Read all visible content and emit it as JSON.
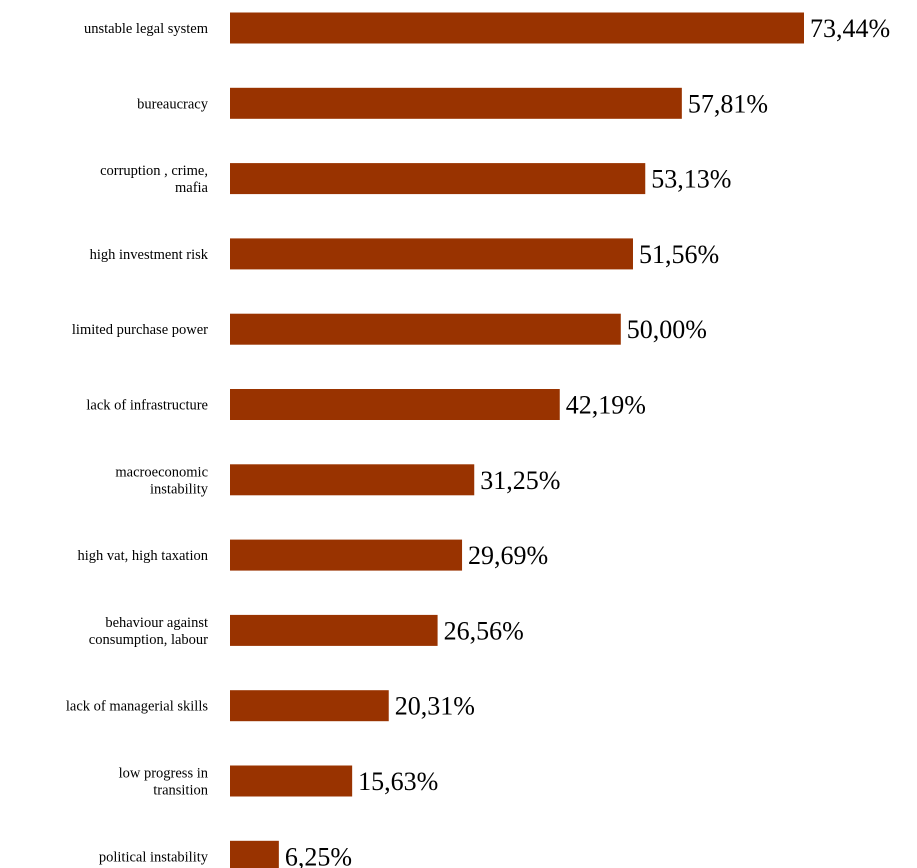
{
  "chart_data": {
    "type": "bar",
    "orientation": "horizontal",
    "title": "",
    "xlabel": "",
    "ylabel": "",
    "categories": [
      "unstable legal system",
      "bureaucracy",
      "corruption , crime, mafia",
      "high investment risk",
      "limited purchase power",
      "lack of infrastructure",
      "macroeconomic instability",
      "high vat, high taxation",
      "behaviour against consumption, labour",
      "lack of managerial skills",
      "low progress in transition",
      "political instability"
    ],
    "category_label_lines": [
      [
        "unstable legal system"
      ],
      [
        "bureaucracy"
      ],
      [
        "corruption , crime,",
        "mafia"
      ],
      [
        "high investment risk"
      ],
      [
        "limited purchase power"
      ],
      [
        "lack of infrastructure"
      ],
      [
        "macroeconomic",
        "instability"
      ],
      [
        "high vat, high taxation"
      ],
      [
        "behaviour against",
        "consumption, labour"
      ],
      [
        "lack of managerial skills"
      ],
      [
        "low progress in",
        "transition"
      ],
      [
        "political instability"
      ]
    ],
    "values": [
      73.44,
      57.81,
      53.13,
      51.56,
      50.0,
      42.19,
      31.25,
      29.69,
      26.56,
      20.31,
      15.63,
      6.25
    ],
    "value_labels": [
      "73,44%",
      "57,81%",
      "53,13%",
      "51,56%",
      "50,00%",
      "42,19%",
      "31,25%",
      "29,69%",
      "26,56%",
      "20,31%",
      "15,63%",
      "6,25%"
    ],
    "xlim": [
      0,
      73.44
    ],
    "grid": false,
    "legend": "none",
    "bar_color": "#993300"
  }
}
